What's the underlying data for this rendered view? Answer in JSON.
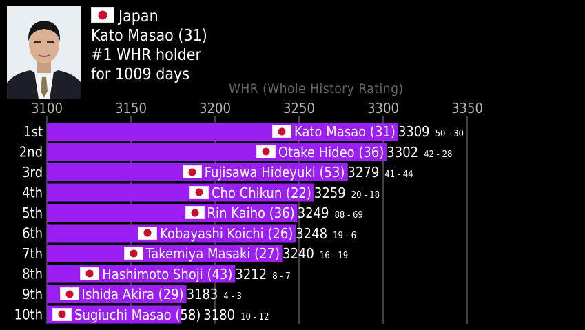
{
  "header": {
    "country": "Japan",
    "name_line": "Kato Masao (31)",
    "holder_line": "#1 WHR holder",
    "days_line": "for 1009 days",
    "axis_title": "WHR (Whole History Rating)"
  },
  "chart_data": {
    "type": "bar",
    "orientation": "horizontal",
    "xlim": [
      3100,
      3350
    ],
    "x_ticks": [
      "3100",
      "3150",
      "3200",
      "3250",
      "3300",
      "3350"
    ],
    "bar_color": "#9b1ff2",
    "grid": true,
    "rows": [
      {
        "rank": "1st",
        "name": "Kato Masao (31)",
        "value": 3309,
        "record": "50 - 30"
      },
      {
        "rank": "2nd",
        "name": "Otake Hideo (36)",
        "value": 3302,
        "record": "42 - 28"
      },
      {
        "rank": "3rd",
        "name": "Fujisawa Hideyuki (53)",
        "value": 3279,
        "record": "41 - 44"
      },
      {
        "rank": "4th",
        "name": "Cho Chikun (22)",
        "value": 3259,
        "record": "20 - 18"
      },
      {
        "rank": "5th",
        "name": "Rin Kaiho (36)",
        "value": 3249,
        "record": "88 - 69"
      },
      {
        "rank": "6th",
        "name": "Kobayashi Koichi (26)",
        "value": 3248,
        "record": "19 - 6"
      },
      {
        "rank": "7th",
        "name": "Takemiya Masaki (27)",
        "value": 3240,
        "record": "16 - 19"
      },
      {
        "rank": "8th",
        "name": "Hashimoto Shoji (43)",
        "value": 3212,
        "record": "8 - 7"
      },
      {
        "rank": "9th",
        "name": "Ishida Akira (29)",
        "value": 3183,
        "record": "4 - 3"
      },
      {
        "rank": "10th",
        "name": "Sugiuchi Masao (58)",
        "value": 3180,
        "record": "10 - 12"
      }
    ]
  }
}
